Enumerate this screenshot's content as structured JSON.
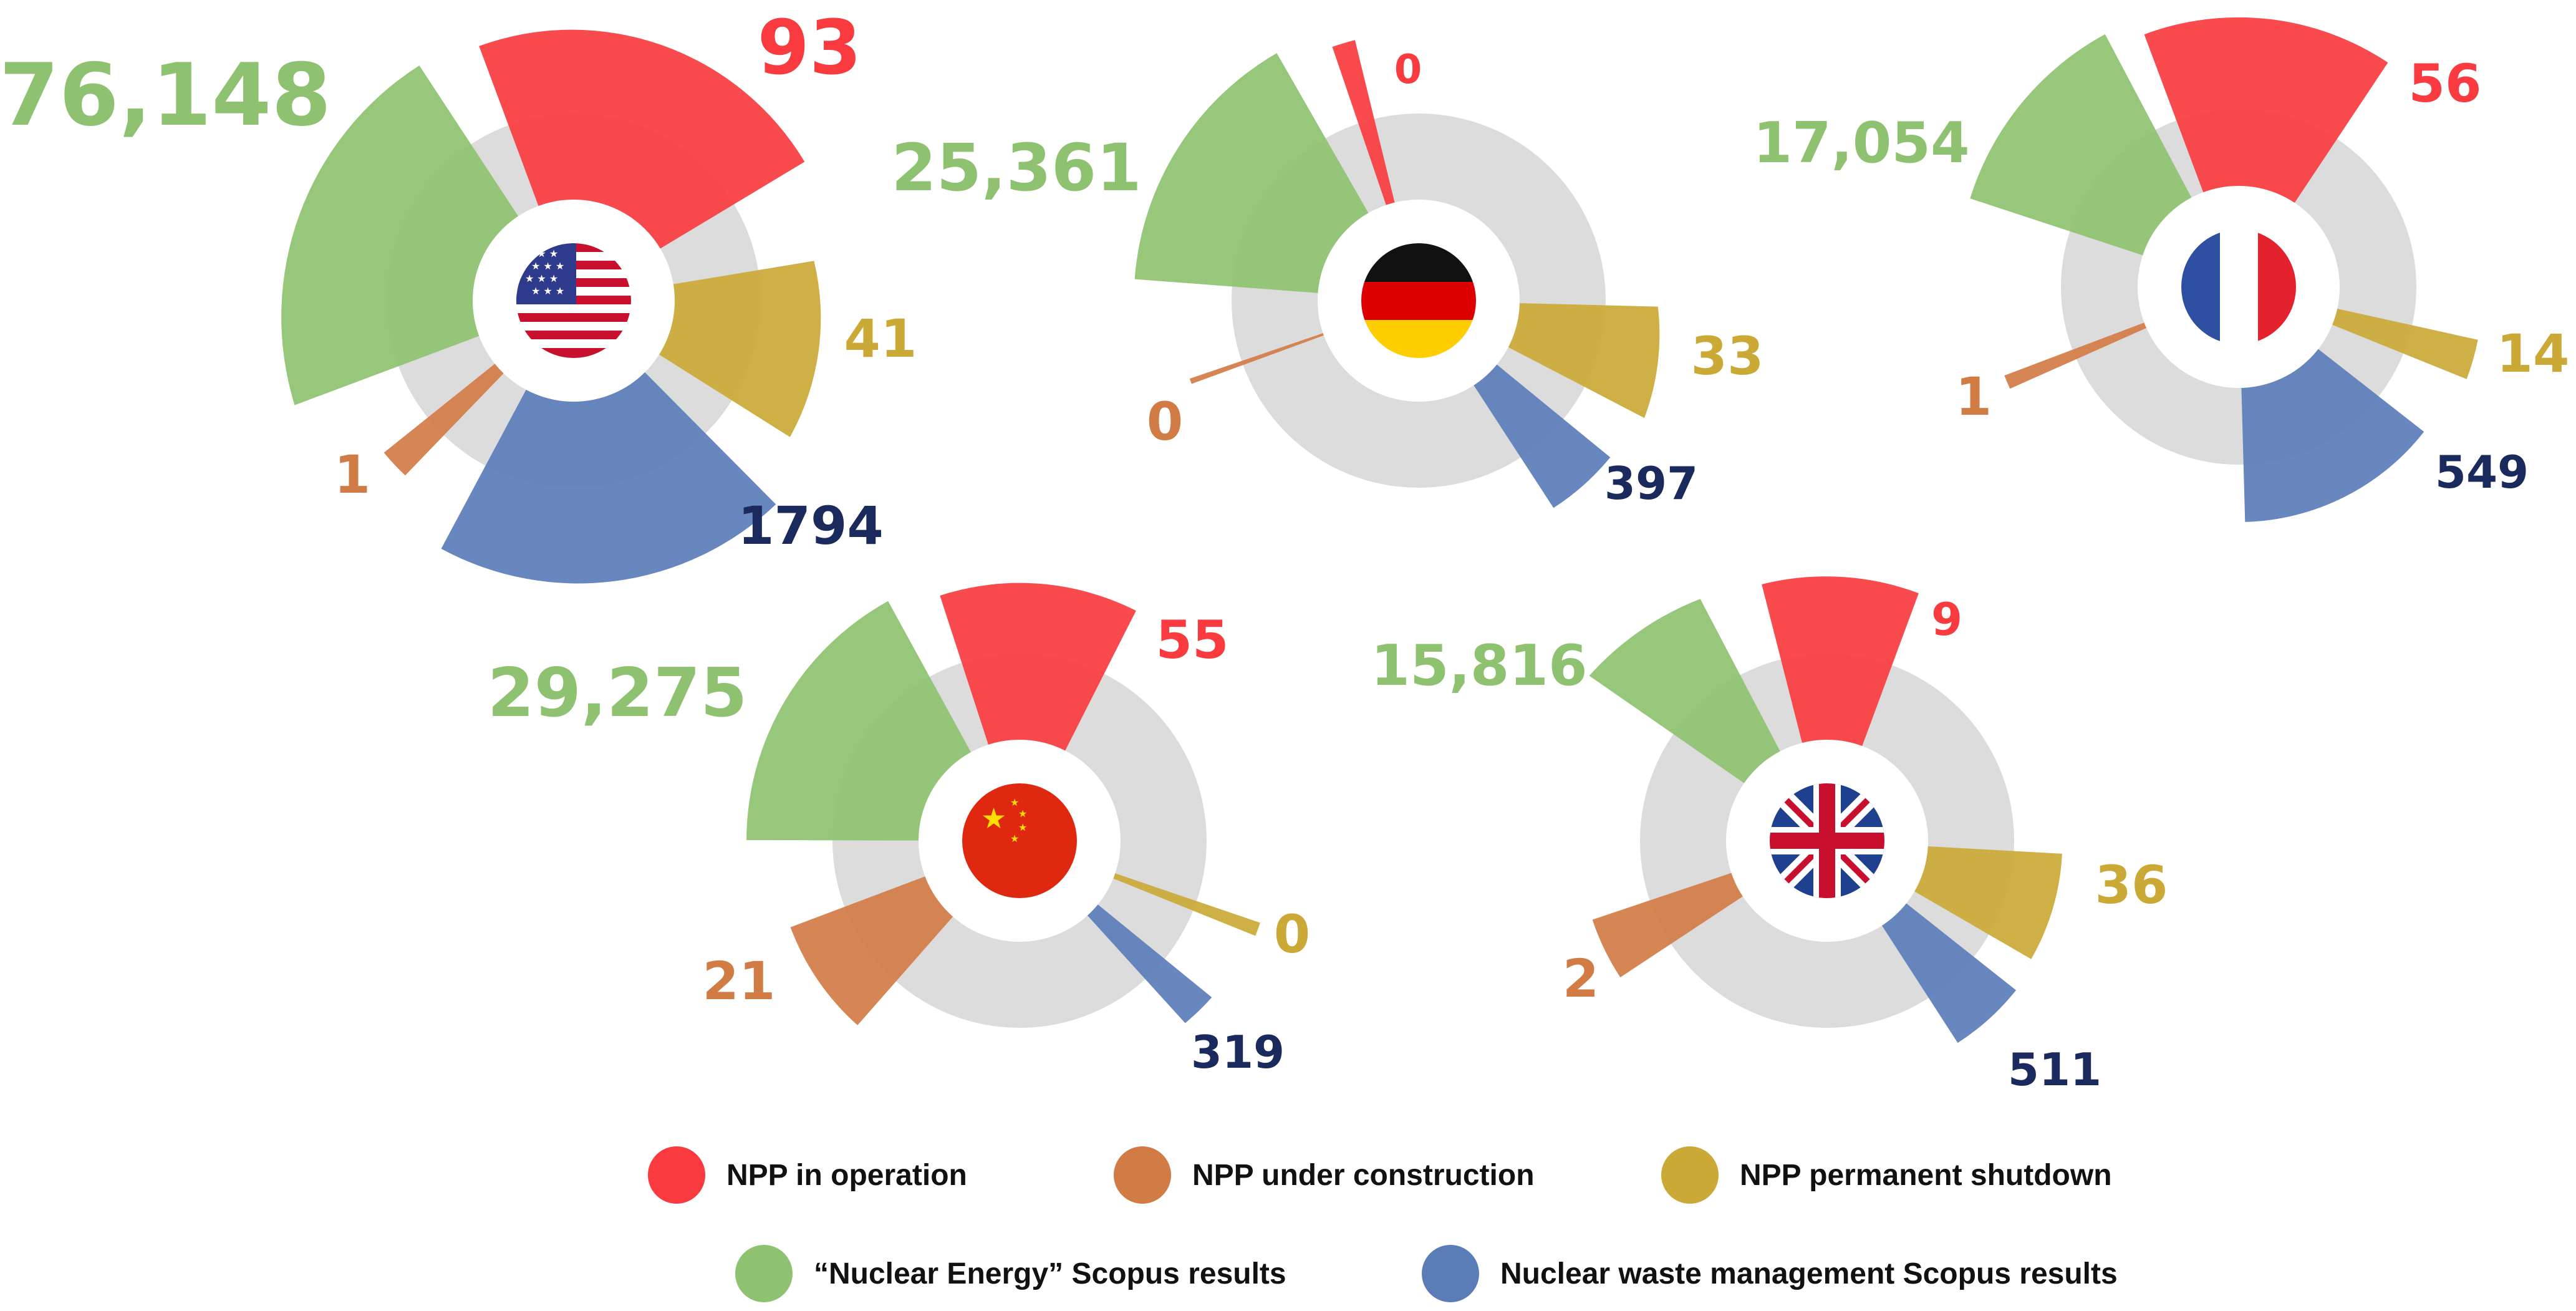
{
  "colors": {
    "operation": "#f93b3f",
    "construction": "#d27c45",
    "shutdown": "#cba937",
    "energy": "#8ec270",
    "waste": "#5a7db8",
    "waste_label": "#1a2a5c",
    "ring": "#dcdcdc"
  },
  "legend": [
    {
      "key": "operation",
      "label": "NPP in operation"
    },
    {
      "key": "construction",
      "label": "NPP under construction"
    },
    {
      "key": "shutdown",
      "label": "NPP permanent shutdown"
    },
    {
      "key": "energy",
      "label": "“Nuclear Energy” Scopus results"
    },
    {
      "key": "waste",
      "label": "Nuclear waste management Scopus results"
    }
  ],
  "chart_data": [
    {
      "type": "radial-bar",
      "country": "United States",
      "flag": "us-flag-icon",
      "values": {
        "operation": "93",
        "construction": "1",
        "shutdown": "41",
        "energy": "76,148",
        "waste": "1794"
      }
    },
    {
      "type": "radial-bar",
      "country": "Germany",
      "flag": "germany-flag-icon",
      "values": {
        "operation": "0",
        "construction": "0",
        "shutdown": "33",
        "energy": "25,361",
        "waste": "397"
      }
    },
    {
      "type": "radial-bar",
      "country": "France",
      "flag": "france-flag-icon",
      "values": {
        "operation": "56",
        "construction": "1",
        "shutdown": "14",
        "energy": "17,054",
        "waste": "549"
      }
    },
    {
      "type": "radial-bar",
      "country": "China",
      "flag": "china-flag-icon",
      "values": {
        "operation": "55",
        "construction": "21",
        "shutdown": "0",
        "energy": "29,275",
        "waste": "319"
      }
    },
    {
      "type": "radial-bar",
      "country": "United Kingdom",
      "flag": "uk-flag-icon",
      "values": {
        "operation": "9",
        "construction": "2",
        "shutdown": "36",
        "energy": "15,816",
        "waste": "511"
      }
    }
  ]
}
